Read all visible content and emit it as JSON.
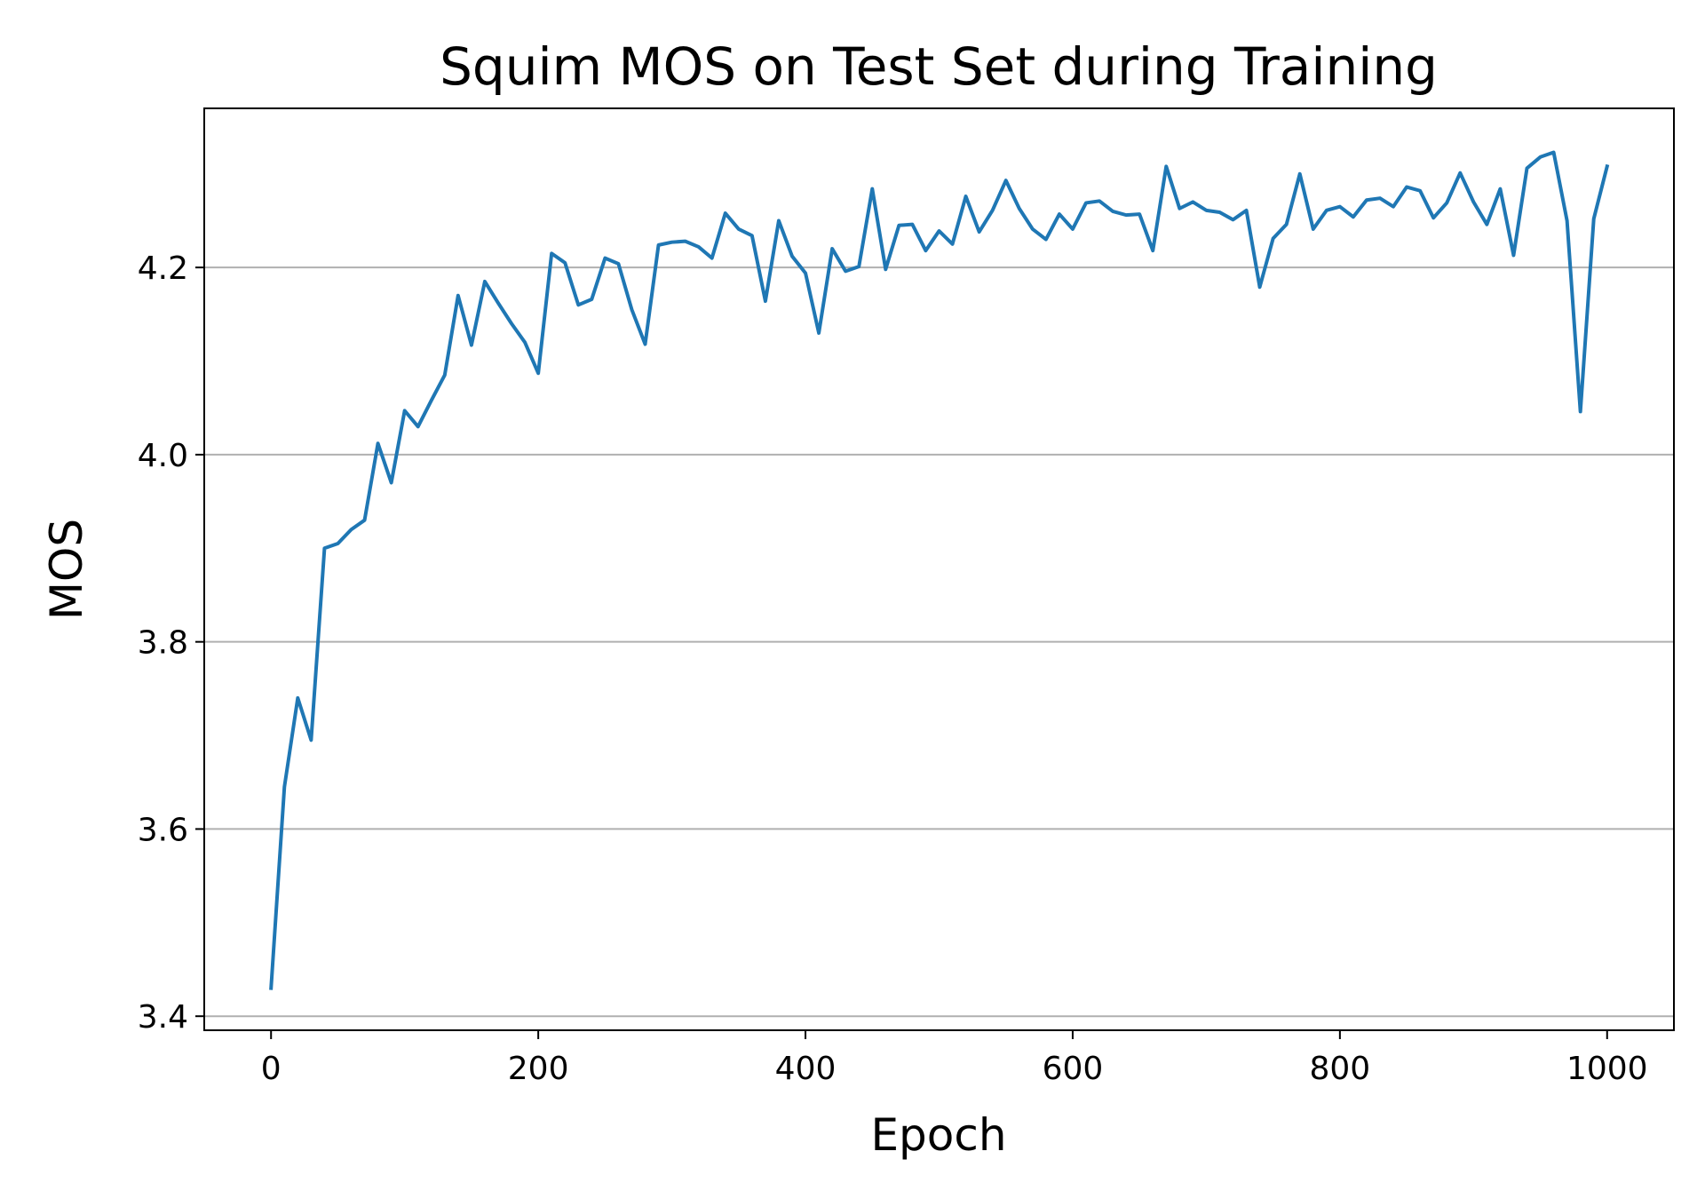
{
  "chart_data": {
    "type": "line",
    "title": "Squim MOS on Test Set during Training",
    "xlabel": "Epoch",
    "ylabel": "MOS",
    "xlim": [
      -50,
      1050
    ],
    "ylim": [
      3.385,
      4.37
    ],
    "xticks": [
      0,
      200,
      400,
      600,
      800,
      1000
    ],
    "xtick_labels": [
      "0",
      "200",
      "400",
      "600",
      "800",
      "1000"
    ],
    "yticks": [
      3.4,
      3.6,
      3.8,
      4.0,
      4.2
    ],
    "ytick_labels": [
      "3.4",
      "3.6",
      "3.8",
      "4.0",
      "4.2"
    ],
    "grid": "horizontal",
    "series": [
      {
        "color": "#1f77b4",
        "x": [
          0,
          10,
          20,
          30,
          40,
          50,
          60,
          70,
          80,
          90,
          100,
          110,
          120,
          130,
          140,
          150,
          160,
          170,
          180,
          190,
          200,
          210,
          220,
          230,
          240,
          250,
          260,
          270,
          280,
          290,
          300,
          310,
          320,
          330,
          340,
          350,
          360,
          370,
          380,
          390,
          400,
          410,
          420,
          430,
          440,
          450,
          460,
          470,
          480,
          490,
          500,
          510,
          520,
          530,
          540,
          550,
          560,
          570,
          580,
          590,
          600,
          610,
          620,
          630,
          640,
          650,
          660,
          670,
          680,
          690,
          700,
          710,
          720,
          730,
          740,
          750,
          760,
          770,
          780,
          790,
          800,
          810,
          820,
          830,
          840,
          850,
          860,
          870,
          880,
          890,
          900,
          910,
          920,
          930,
          940,
          950,
          960,
          970,
          980,
          990,
          1000
        ],
        "y": [
          3.43,
          3.645,
          3.74,
          3.695,
          3.9,
          3.905,
          3.92,
          3.93,
          4.012,
          3.97,
          4.047,
          4.03,
          4.058,
          4.085,
          4.17,
          4.117,
          4.185,
          4.162,
          4.14,
          4.12,
          4.087,
          4.215,
          4.205,
          4.16,
          4.166,
          4.21,
          4.204,
          4.155,
          4.118,
          4.224,
          4.227,
          4.228,
          4.222,
          4.21,
          4.258,
          4.241,
          4.234,
          4.164,
          4.25,
          4.212,
          4.194,
          4.13,
          4.22,
          4.196,
          4.201,
          4.284,
          4.198,
          4.245,
          4.246,
          4.218,
          4.239,
          4.225,
          4.276,
          4.238,
          4.261,
          4.293,
          4.263,
          4.241,
          4.23,
          4.257,
          4.241,
          4.269,
          4.271,
          4.26,
          4.256,
          4.257,
          4.218,
          4.308,
          4.263,
          4.27,
          4.261,
          4.259,
          4.251,
          4.261,
          4.179,
          4.231,
          4.246,
          4.3,
          4.241,
          4.261,
          4.265,
          4.254,
          4.272,
          4.274,
          4.265,
          4.286,
          4.282,
          4.253,
          4.269,
          4.301,
          4.27,
          4.246,
          4.284,
          4.213,
          4.306,
          4.318,
          4.323,
          4.25,
          4.046,
          4.252,
          4.308
        ]
      }
    ]
  }
}
